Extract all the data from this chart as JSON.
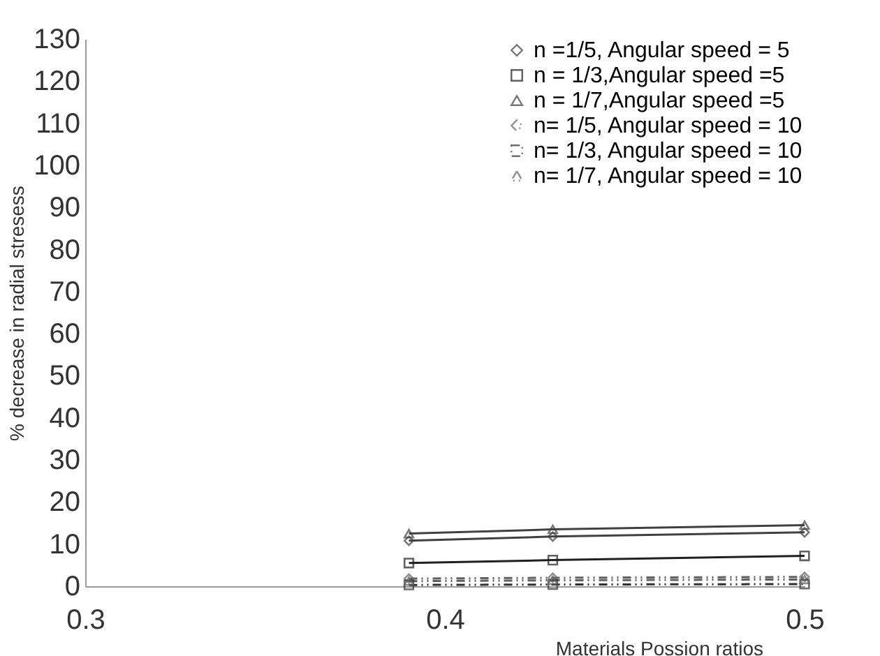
{
  "chart_data": {
    "type": "line",
    "xlabel": "Materials Possion ratios",
    "ylabel": "% decrease in radial stresess",
    "x": [
      0.39,
      0.43,
      0.5
    ],
    "xlim": [
      0.3,
      0.5
    ],
    "xticks": [
      0.3,
      0.4,
      0.5
    ],
    "ylim": [
      0,
      130
    ],
    "yticks": [
      0,
      10,
      20,
      30,
      40,
      50,
      60,
      70,
      80,
      90,
      100,
      110,
      120,
      130
    ],
    "grid": false,
    "legend": "top right",
    "series": [
      {
        "name": "n =1/5, Angular speed = 5",
        "color": "#404040",
        "marker": "diamond",
        "line_style": "solid",
        "values": [
          10.8,
          11.8,
          12.8
        ]
      },
      {
        "name": "n = 1/3,Angular speed =5",
        "color": "#202020",
        "marker": "square",
        "line_style": "solid",
        "values": [
          5.5,
          6.2,
          7.2
        ]
      },
      {
        "name": "n = 1/7,Angular speed =5",
        "color": "#404040",
        "marker": "triangle",
        "line_style": "solid",
        "values": [
          12.5,
          13.5,
          14.5
        ]
      },
      {
        "name": "n= 1/5, Angular speed = 10",
        "color": "#606060",
        "marker": "diamond",
        "line_style": "dashed",
        "values": [
          1.8,
          2,
          2.2
        ]
      },
      {
        "name": "n= 1/3, Angular speed = 10",
        "color": "#303030",
        "marker": "square",
        "line_style": "dashed",
        "values": [
          0.3,
          0.4,
          0.5
        ]
      },
      {
        "name": "n= 1/7, Angular speed = 10",
        "color": "#606060",
        "marker": "triangle",
        "line_style": "dashed",
        "values": [
          1.2,
          1.4,
          1.6
        ]
      }
    ]
  }
}
